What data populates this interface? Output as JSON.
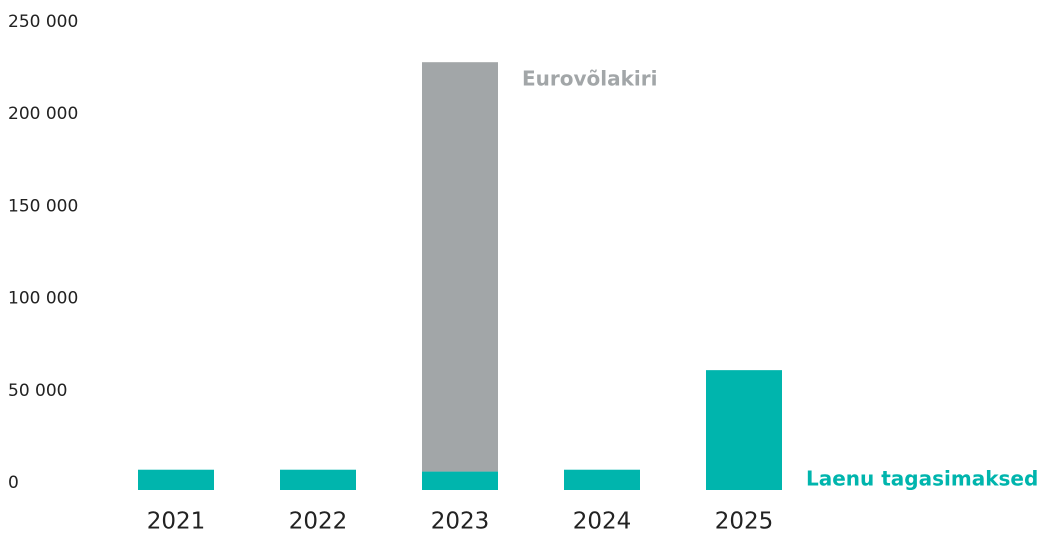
{
  "chart_data": {
    "type": "stacked_bar",
    "categories": [
      "2021",
      "2022",
      "2023",
      "2024",
      "2025"
    ],
    "series": [
      {
        "name": "Laenu tagasimaksed",
        "color": "#00b5ad",
        "values": [
          11000,
          11000,
          10000,
          11000,
          65000
        ]
      },
      {
        "name": "Eurovõlakiri",
        "color": "#a2a6a8",
        "values": [
          null,
          null,
          222000,
          null,
          null
        ]
      }
    ],
    "ylim": [
      0,
      250000
    ],
    "yticks": [
      {
        "value": 0,
        "label": "0"
      },
      {
        "value": 50000,
        "label": "50 000"
      },
      {
        "value": 100000,
        "label": "100 000"
      },
      {
        "value": 150000,
        "label": "150 000"
      },
      {
        "value": 200000,
        "label": "200 000"
      },
      {
        "value": 250000,
        "label": "250 000"
      }
    ],
    "grid": false
  }
}
